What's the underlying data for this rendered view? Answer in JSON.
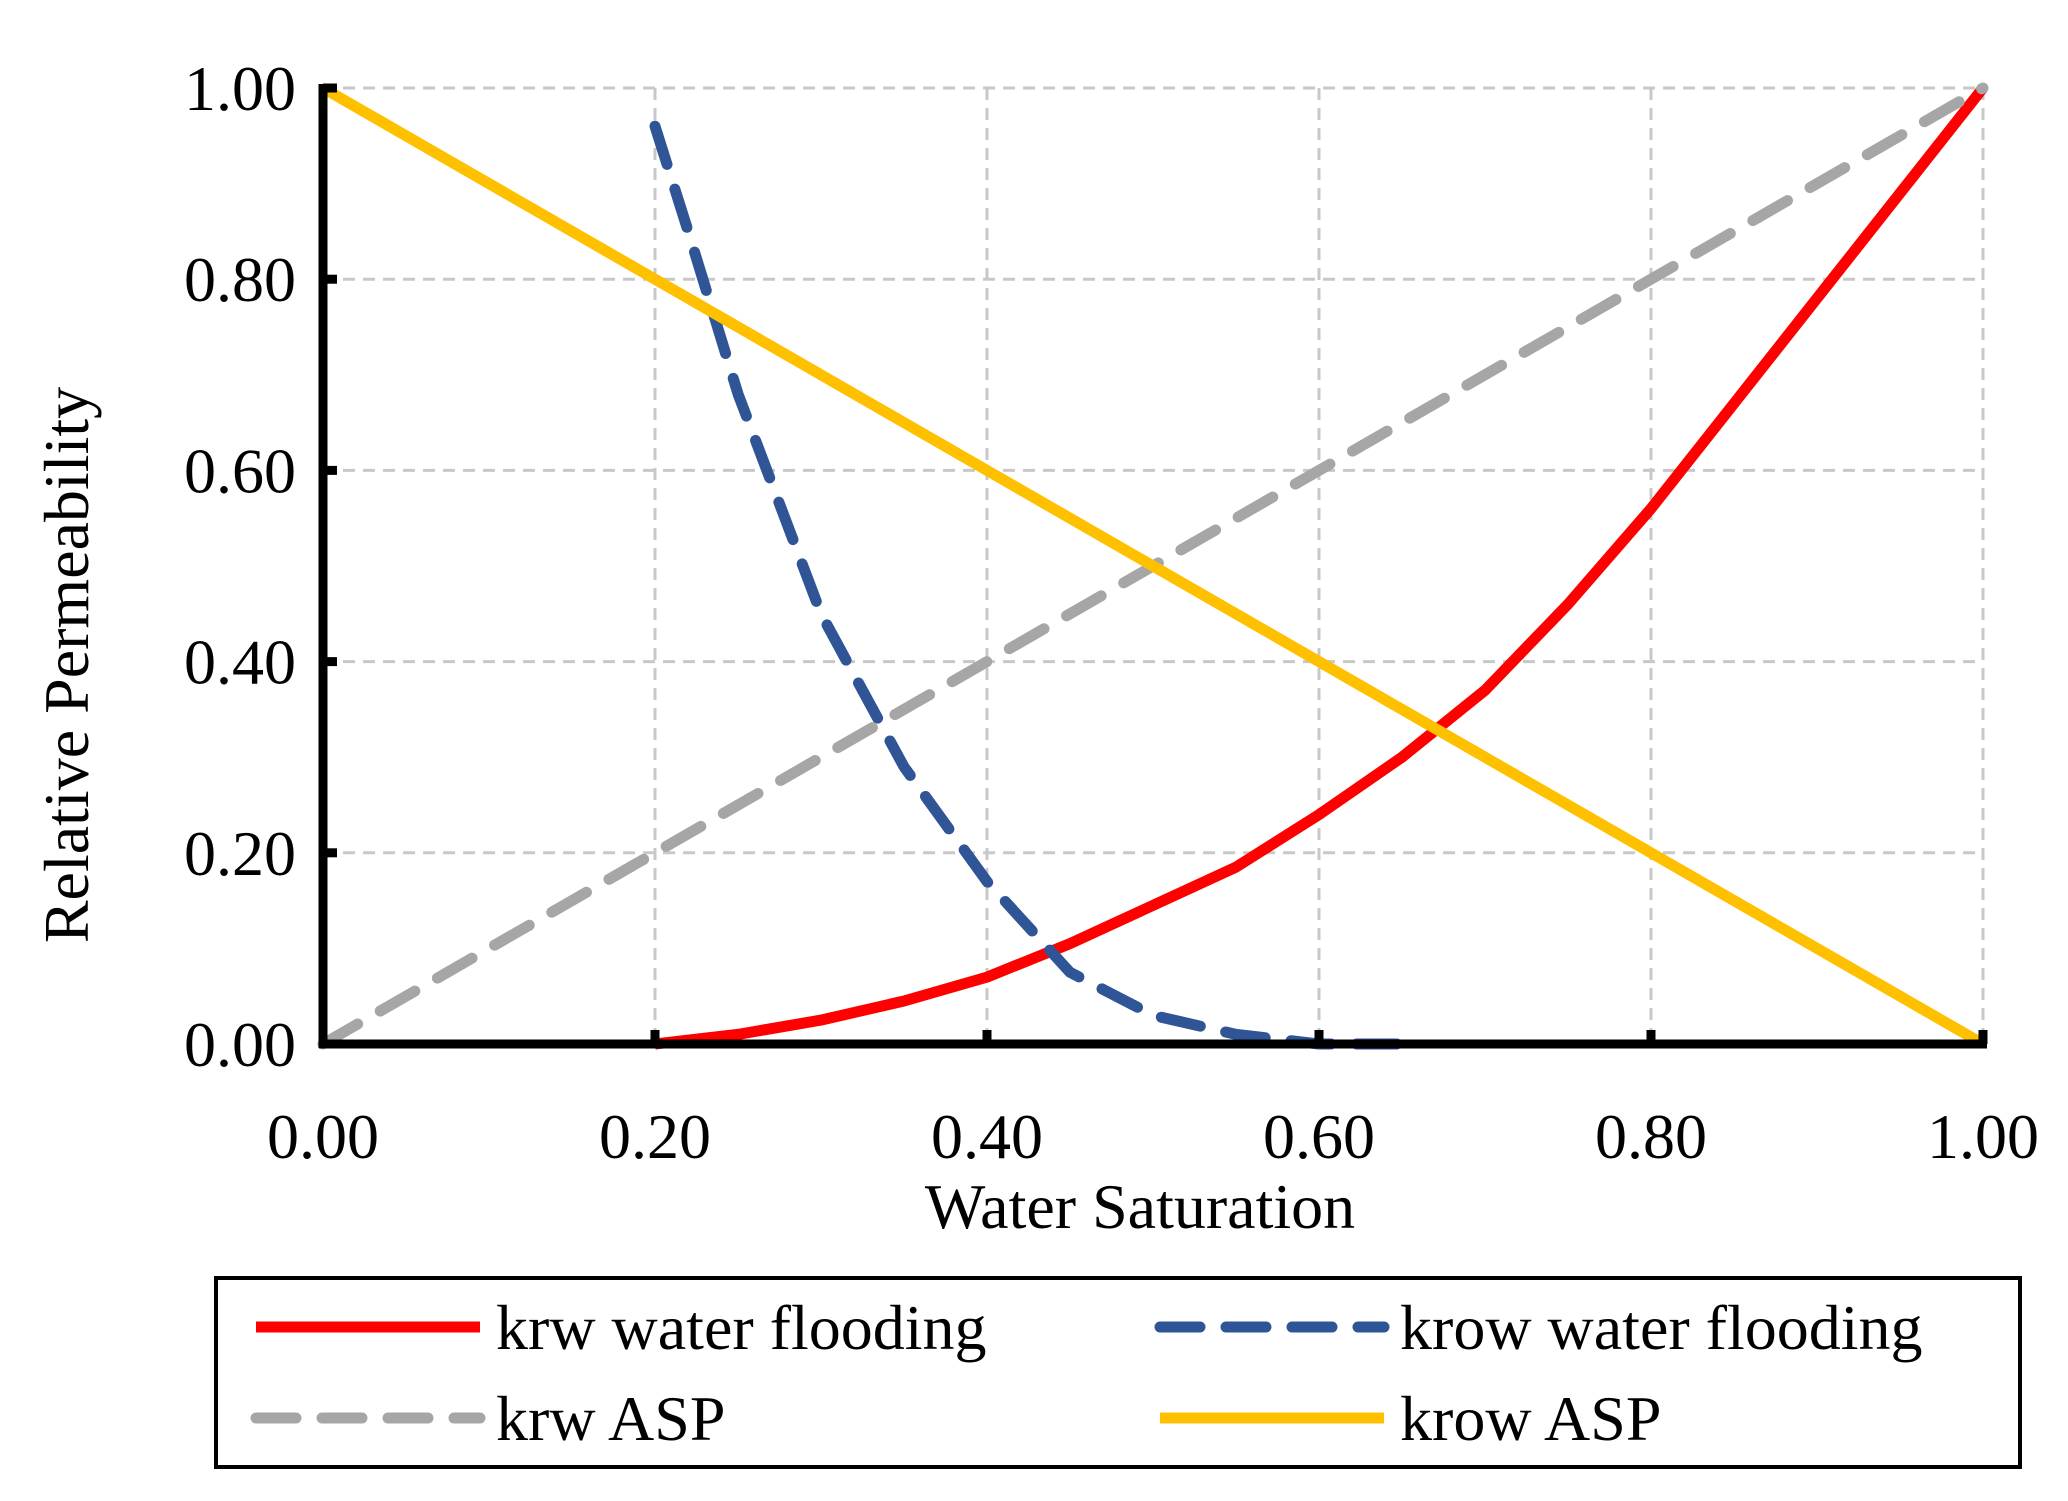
{
  "chart_data": {
    "type": "line",
    "title": "",
    "xlabel": "Water Saturation",
    "ylabel": "Relative Permeability",
    "xlim": [
      0,
      1
    ],
    "ylim": [
      0,
      1
    ],
    "x_ticks": [
      "0.00",
      "0.20",
      "0.40",
      "0.60",
      "0.80",
      "1.00"
    ],
    "y_ticks": [
      "0.00",
      "0.20",
      "0.40",
      "0.60",
      "0.80",
      "1.00"
    ],
    "grid": true,
    "legend_position": "bottom",
    "series": [
      {
        "name": "krw water flooding",
        "color": "#ff0000",
        "style": "solid",
        "x": [
          0.2,
          0.25,
          0.3,
          0.35,
          0.4,
          0.45,
          0.5,
          0.55,
          0.6,
          0.65,
          0.7,
          0.75,
          0.8,
          0.85,
          0.9,
          0.95,
          1.0
        ],
        "y": [
          0.0,
          0.01,
          0.025,
          0.045,
          0.07,
          0.105,
          0.145,
          0.185,
          0.24,
          0.3,
          0.37,
          0.46,
          0.56,
          0.67,
          0.78,
          0.89,
          1.0
        ]
      },
      {
        "name": "krow water flooding",
        "color": "#2f5597",
        "style": "dashed",
        "x": [
          0.2,
          0.22,
          0.25,
          0.3,
          0.35,
          0.4,
          0.45,
          0.5,
          0.55,
          0.6,
          0.65
        ],
        "y": [
          0.96,
          0.85,
          0.68,
          0.45,
          0.29,
          0.17,
          0.075,
          0.03,
          0.01,
          0.0,
          0.0
        ]
      },
      {
        "name": "krw ASP",
        "color": "#a6a6a6",
        "style": "dashed",
        "x": [
          0.0,
          1.0
        ],
        "y": [
          0.0,
          1.0
        ]
      },
      {
        "name": "krow ASP",
        "color": "#ffc000",
        "style": "solid",
        "x": [
          0.0,
          1.0
        ],
        "y": [
          1.0,
          0.0
        ]
      }
    ]
  }
}
